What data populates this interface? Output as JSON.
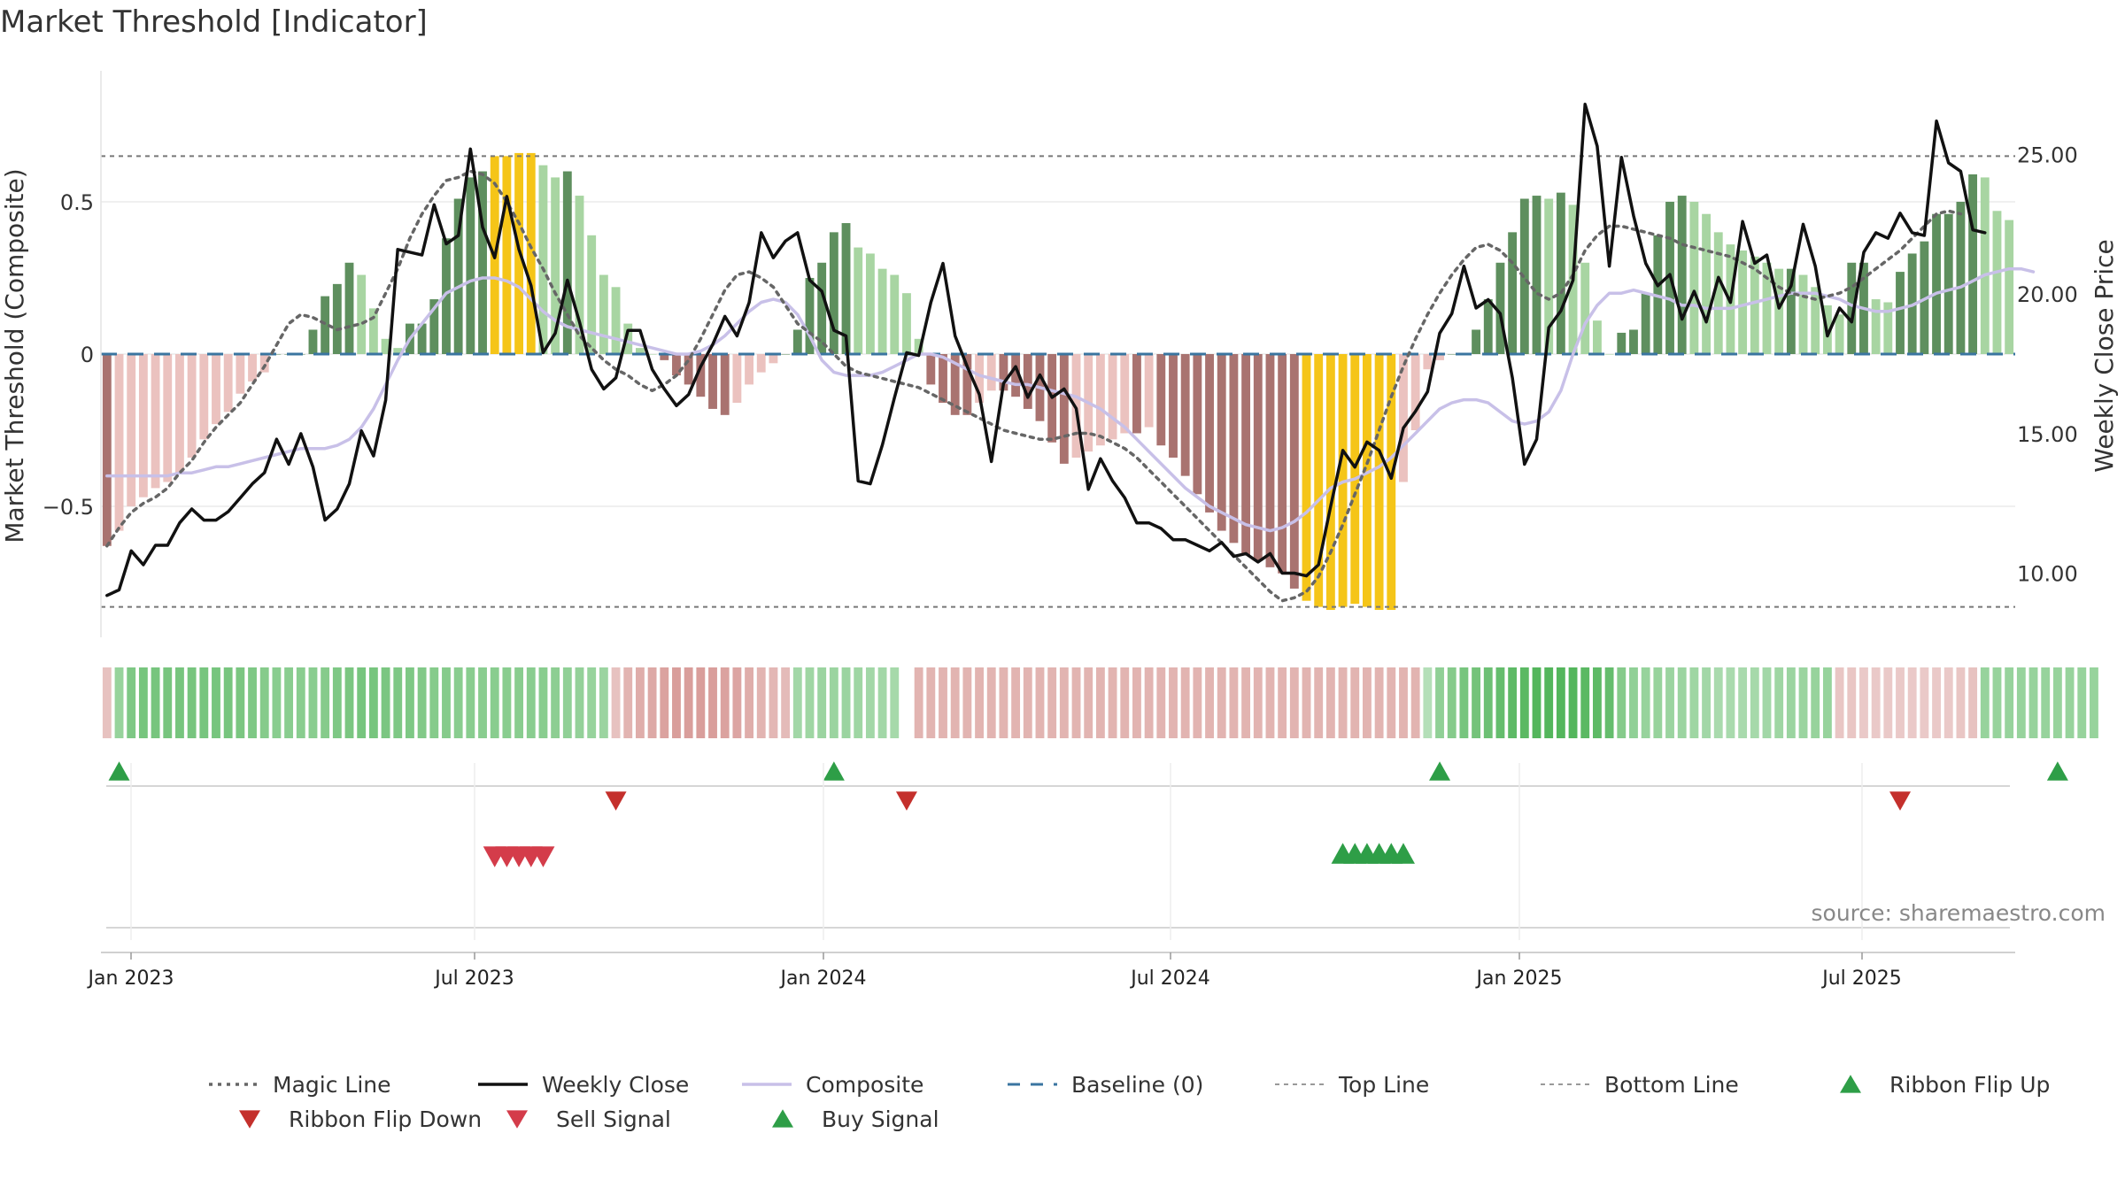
{
  "chart_data": {
    "type": "bar",
    "title": "Market Threshold [Indicator]",
    "ylabel_left": "Market Threshold (Composite)",
    "ylabel_right": "Weekly Close Price",
    "source": "source: sharemaestro.com",
    "x_ticks": [
      "Jan 2023",
      "Jul 2023",
      "Jan 2024",
      "Jul 2024",
      "Jan 2025",
      "Jul 2025"
    ],
    "y_left_ticks": [
      {
        "value": 0.5,
        "label": "0.5"
      },
      {
        "value": 0,
        "label": "0"
      },
      {
        "value": -0.5,
        "label": "−0.5"
      }
    ],
    "y_right_ticks": [
      {
        "value": 25,
        "label": "25.00"
      },
      {
        "value": 20,
        "label": "20.00"
      },
      {
        "value": 15,
        "label": "15.00"
      },
      {
        "value": 10,
        "label": "10.00"
      }
    ],
    "y_left_range": [
      -0.93,
      0.93
    ],
    "y_right_range": [
      7.7,
      28.0
    ],
    "top_line": 0.65,
    "bottom_line": -0.83,
    "colors": {
      "strong_up": "#5e8f5e",
      "light_up": "#a8d5a2",
      "strong_down": "#a97370",
      "light_down": "#ebc2bf",
      "extreme": "#f5c518",
      "close": "#111111",
      "composite": "#c8c0e8",
      "magic": "#666666",
      "baseline": "#3a75a0",
      "buy": "#2e9e47",
      "sell": "#d43c4a",
      "ribbon_up": "#2e9e47",
      "ribbon_down": "#c4302c"
    },
    "series": [
      {
        "name": "Composite Bars",
        "values": [
          -0.63,
          -0.58,
          -0.5,
          -0.47,
          -0.44,
          -0.42,
          -0.39,
          -0.34,
          -0.28,
          -0.23,
          -0.19,
          -0.13,
          -0.09,
          -0.06,
          0,
          0,
          0,
          0.08,
          0.19,
          0.23,
          0.3,
          0.26,
          0.15,
          0.05,
          0.02,
          0.1,
          0.1,
          0.18,
          0.38,
          0.51,
          0.58,
          0.6,
          0.65,
          0.65,
          0.66,
          0.66,
          0.62,
          0.58,
          0.6,
          0.52,
          0.39,
          0.26,
          0.22,
          0.1,
          0.02,
          0,
          -0.02,
          -0.07,
          -0.1,
          -0.14,
          -0.18,
          -0.2,
          -0.16,
          -0.1,
          -0.06,
          -0.03,
          0,
          0.08,
          0.25,
          0.3,
          0.4,
          0.43,
          0.35,
          0.33,
          0.28,
          0.26,
          0.2,
          0.05,
          -0.1,
          -0.16,
          -0.2,
          -0.2,
          -0.16,
          -0.12,
          -0.12,
          -0.14,
          -0.18,
          -0.22,
          -0.29,
          -0.36,
          -0.34,
          -0.32,
          -0.3,
          -0.28,
          -0.26,
          -0.26,
          -0.24,
          -0.3,
          -0.34,
          -0.4,
          -0.46,
          -0.52,
          -0.58,
          -0.62,
          -0.66,
          -0.68,
          -0.7,
          -0.72,
          -0.77,
          -0.81,
          -0.83,
          -0.84,
          -0.83,
          -0.82,
          -0.83,
          -0.84,
          -0.84,
          -0.42,
          -0.25,
          -0.05,
          -0.02,
          0,
          0,
          0.08,
          0.18,
          0.3,
          0.4,
          0.51,
          0.52,
          0.51,
          0.53,
          0.49,
          0.3,
          0.11,
          0,
          0.07,
          0.08,
          0.2,
          0.39,
          0.5,
          0.52,
          0.5,
          0.46,
          0.4,
          0.36,
          0.34,
          0.32,
          0.3,
          0.28,
          0.28,
          0.26,
          0.22,
          0.16,
          0.13,
          0.3,
          0.3,
          0.18,
          0.17,
          0.27,
          0.33,
          0.37,
          0.46,
          0.46,
          0.5,
          0.59,
          0.58,
          0.47,
          0.44
        ]
      },
      {
        "name": "Magic Line",
        "values": [
          -0.63,
          -0.57,
          -0.52,
          -0.49,
          -0.47,
          -0.44,
          -0.39,
          -0.35,
          -0.29,
          -0.24,
          -0.2,
          -0.16,
          -0.1,
          -0.04,
          0.03,
          0.1,
          0.13,
          0.12,
          0.1,
          0.08,
          0.09,
          0.1,
          0.12,
          0.2,
          0.28,
          0.38,
          0.46,
          0.52,
          0.57,
          0.58,
          0.6,
          0.59,
          0.56,
          0.5,
          0.43,
          0.35,
          0.28,
          0.2,
          0.13,
          0.06,
          0.02,
          -0.02,
          -0.05,
          -0.07,
          -0.1,
          -0.12,
          -0.1,
          -0.07,
          -0.02,
          0.05,
          0.13,
          0.21,
          0.26,
          0.27,
          0.25,
          0.22,
          0.16,
          0.1,
          0.07,
          0.04,
          0,
          -0.04,
          -0.06,
          -0.07,
          -0.08,
          -0.09,
          -0.1,
          -0.11,
          -0.13,
          -0.15,
          -0.17,
          -0.19,
          -0.21,
          -0.23,
          -0.25,
          -0.26,
          -0.27,
          -0.28,
          -0.28,
          -0.27,
          -0.26,
          -0.26,
          -0.27,
          -0.29,
          -0.31,
          -0.34,
          -0.38,
          -0.42,
          -0.46,
          -0.5,
          -0.54,
          -0.58,
          -0.62,
          -0.66,
          -0.7,
          -0.74,
          -0.78,
          -0.81,
          -0.8,
          -0.78,
          -0.73,
          -0.65,
          -0.56,
          -0.46,
          -0.36,
          -0.25,
          -0.14,
          -0.04,
          0.05,
          0.13,
          0.2,
          0.26,
          0.31,
          0.35,
          0.36,
          0.34,
          0.3,
          0.25,
          0.2,
          0.18,
          0.2,
          0.26,
          0.34,
          0.39,
          0.42,
          0.42,
          0.41,
          0.4,
          0.39,
          0.38,
          0.36,
          0.35,
          0.34,
          0.33,
          0.32,
          0.3,
          0.28,
          0.25,
          0.22,
          0.2,
          0.19,
          0.18,
          0.19,
          0.2,
          0.22,
          0.25,
          0.28,
          0.31,
          0.34,
          0.38,
          0.42,
          0.46,
          0.47,
          0.46
        ]
      },
      {
        "name": "Composite",
        "values": [
          -0.4,
          -0.4,
          -0.4,
          -0.4,
          -0.4,
          -0.4,
          -0.39,
          -0.39,
          -0.38,
          -0.37,
          -0.37,
          -0.36,
          -0.35,
          -0.34,
          -0.33,
          -0.32,
          -0.31,
          -0.31,
          -0.31,
          -0.3,
          -0.28,
          -0.24,
          -0.18,
          -0.1,
          -0.02,
          0.05,
          0.1,
          0.15,
          0.2,
          0.22,
          0.24,
          0.25,
          0.25,
          0.24,
          0.22,
          0.18,
          0.14,
          0.11,
          0.09,
          0.08,
          0.07,
          0.06,
          0.05,
          0.04,
          0.03,
          0.02,
          0.01,
          0,
          0,
          0.01,
          0.03,
          0.06,
          0.1,
          0.14,
          0.17,
          0.18,
          0.17,
          0.13,
          0.06,
          -0.02,
          -0.06,
          -0.07,
          -0.07,
          -0.07,
          -0.06,
          -0.04,
          -0.02,
          0,
          0,
          -0.01,
          -0.03,
          -0.05,
          -0.07,
          -0.08,
          -0.09,
          -0.1,
          -0.1,
          -0.11,
          -0.12,
          -0.13,
          -0.14,
          -0.16,
          -0.18,
          -0.21,
          -0.24,
          -0.28,
          -0.32,
          -0.36,
          -0.4,
          -0.44,
          -0.47,
          -0.5,
          -0.52,
          -0.54,
          -0.56,
          -0.57,
          -0.58,
          -0.57,
          -0.55,
          -0.52,
          -0.48,
          -0.44,
          -0.42,
          -0.41,
          -0.39,
          -0.37,
          -0.34,
          -0.3,
          -0.26,
          -0.22,
          -0.18,
          -0.16,
          -0.15,
          -0.15,
          -0.16,
          -0.19,
          -0.22,
          -0.23,
          -0.22,
          -0.19,
          -0.12,
          0,
          0.1,
          0.16,
          0.2,
          0.2,
          0.21,
          0.2,
          0.19,
          0.18,
          0.16,
          0.16,
          0.15,
          0.15,
          0.15,
          0.16,
          0.17,
          0.18,
          0.19,
          0.2,
          0.2,
          0.2,
          0.19,
          0.18,
          0.16,
          0.15,
          0.14,
          0.14,
          0.15,
          0.16,
          0.18,
          0.2,
          0.21,
          0.22,
          0.24,
          0.26,
          0.27,
          0.28,
          0.28,
          0.27
        ]
      },
      {
        "name": "Weekly Close",
        "values": [
          9.2,
          9.4,
          10.8,
          10.3,
          11.0,
          11.0,
          11.8,
          12.3,
          11.9,
          11.9,
          12.2,
          12.7,
          13.2,
          13.6,
          14.8,
          13.9,
          15.0,
          13.8,
          11.9,
          12.3,
          13.2,
          15.1,
          14.2,
          16.2,
          21.6,
          21.5,
          21.4,
          23.2,
          21.8,
          22.1,
          25.2,
          22.4,
          21.3,
          23.5,
          21.6,
          20.3,
          17.9,
          18.6,
          20.5,
          19.0,
          17.3,
          16.6,
          17.0,
          18.7,
          18.7,
          17.3,
          16.6,
          16.0,
          16.4,
          17.4,
          18.2,
          19.2,
          18.5,
          19.7,
          22.2,
          21.3,
          21.9,
          22.2,
          20.5,
          20.1,
          18.7,
          18.5,
          13.3,
          13.2,
          14.6,
          16.3,
          17.9,
          17.8,
          19.7,
          21.1,
          18.5,
          17.4,
          16.4,
          14.0,
          16.8,
          17.4,
          16.3,
          17.1,
          16.3,
          16.6,
          15.9,
          13.0,
          14.1,
          13.3,
          12.7,
          11.8,
          11.8,
          11.6,
          11.2,
          11.2,
          11.0,
          10.8,
          11.1,
          10.6,
          10.7,
          10.4,
          10.7,
          10.0,
          10.0,
          9.9,
          10.3,
          12.4,
          14.4,
          13.8,
          14.7,
          14.4,
          13.4,
          15.2,
          15.8,
          16.5,
          18.6,
          19.3,
          21.0,
          19.5,
          19.8,
          19.3,
          17.0,
          13.9,
          14.8,
          18.8,
          19.4,
          20.5,
          26.8,
          25.3,
          21.0,
          24.9,
          22.8,
          21.1,
          20.3,
          20.7,
          19.1,
          20.1,
          19.0,
          20.6,
          19.7,
          22.6,
          21.1,
          21.4,
          19.5,
          20.3,
          22.5,
          21.0,
          18.5,
          19.5,
          19.0,
          21.5,
          22.2,
          22.0,
          22.9,
          22.2,
          22.1,
          26.2,
          24.7,
          24.4,
          22.3,
          22.2
        ]
      }
    ],
    "ribbon_intensity": [
      -0.3,
      0.45,
      0.65,
      0.7,
      0.7,
      0.7,
      0.7,
      0.7,
      0.7,
      0.7,
      0.7,
      0.68,
      0.66,
      0.6,
      0.55,
      0.55,
      0.55,
      0.56,
      0.6,
      0.65,
      0.68,
      0.7,
      0.7,
      0.68,
      0.66,
      0.65,
      0.62,
      0.6,
      0.58,
      0.56,
      0.55,
      0.55,
      0.55,
      0.55,
      0.55,
      0.55,
      0.55,
      0.52,
      0.5,
      0.48,
      0.45,
      0.4,
      -0.3,
      -0.45,
      -0.55,
      -0.6,
      -0.68,
      -0.7,
      -0.7,
      -0.7,
      -0.7,
      -0.68,
      -0.62,
      -0.55,
      -0.45,
      -0.4,
      -0.38,
      0.35,
      0.38,
      0.4,
      0.42,
      0.4,
      0.38,
      0.36,
      0.34,
      0.32,
      null,
      -0.45,
      -0.45,
      -0.46,
      -0.46,
      -0.46,
      -0.46,
      -0.46,
      -0.46,
      -0.46,
      -0.46,
      -0.46,
      -0.46,
      -0.46,
      -0.46,
      -0.46,
      -0.46,
      -0.46,
      -0.46,
      -0.46,
      -0.46,
      -0.46,
      -0.46,
      -0.46,
      -0.46,
      -0.46,
      -0.46,
      -0.46,
      -0.46,
      -0.46,
      -0.46,
      -0.46,
      -0.46,
      -0.46,
      -0.46,
      -0.46,
      -0.46,
      -0.46,
      -0.46,
      -0.46,
      -0.46,
      -0.46,
      -0.46,
      0.2,
      0.5,
      0.6,
      0.7,
      0.75,
      0.8,
      0.85,
      0.9,
      0.95,
      1.0,
      1.0,
      1.0,
      1.0,
      0.95,
      0.9,
      0.85,
      0.6,
      0.5,
      0.45,
      0.45,
      0.42,
      0.4,
      0.38,
      0.35,
      0.3,
      0.3,
      0.3,
      0.32,
      0.35,
      0.38,
      0.4,
      0.42,
      0.45,
      0.45,
      -0.25,
      -0.25,
      -0.22,
      -0.2,
      -0.2,
      -0.2,
      -0.2,
      -0.2,
      -0.2,
      -0.22,
      -0.25,
      -0.28,
      0.45,
      0.45,
      0.45,
      0.45,
      0.45,
      0.45,
      0.45,
      0.45,
      0.45,
      0.45
    ],
    "signals": {
      "ribbon_flip_up": [
        1,
        60,
        110,
        161
      ],
      "ribbon_flip_down": [
        42,
        66,
        148
      ],
      "sell": [
        32,
        33,
        34,
        35,
        36
      ],
      "buy": [
        102,
        103,
        104,
        105,
        106,
        107
      ]
    },
    "legend": [
      {
        "label": "Magic Line",
        "kind": "dotted",
        "color": "#666666"
      },
      {
        "label": "Weekly Close",
        "kind": "solid",
        "color": "#111111"
      },
      {
        "label": "Composite",
        "kind": "solid",
        "color": "#c8c0e8"
      },
      {
        "label": "Baseline (0)",
        "kind": "dashed",
        "color": "#3a75a0"
      },
      {
        "label": "Top Line",
        "kind": "dashed-thin",
        "color": "#999999"
      },
      {
        "label": "Bottom Line",
        "kind": "dashed-thin",
        "color": "#999999"
      },
      {
        "label": "Ribbon Flip Up",
        "kind": "tri-up",
        "color": "#2e9e47"
      },
      {
        "label": "Ribbon Flip Down",
        "kind": "tri-down",
        "color": "#c4302c"
      },
      {
        "label": "Sell Signal",
        "kind": "tri-down",
        "color": "#d43c4a"
      },
      {
        "label": "Buy Signal",
        "kind": "tri-up",
        "color": "#2e9e47"
      }
    ]
  }
}
